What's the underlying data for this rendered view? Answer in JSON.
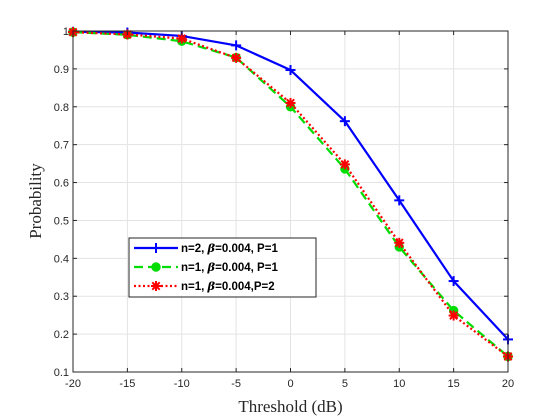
{
  "chart_data": {
    "type": "line",
    "title": "",
    "xlabel": "Threshold (dB)",
    "ylabel": "Probability",
    "x": [
      -20,
      -15,
      -10,
      -5,
      0,
      5,
      10,
      15,
      20
    ],
    "xlim": [
      -20,
      20
    ],
    "ylim": [
      0.1,
      1.0
    ],
    "x_ticks": [
      -20,
      -15,
      -10,
      -5,
      0,
      5,
      10,
      15,
      20
    ],
    "y_ticks": [
      0.1,
      0.2,
      0.3,
      0.4,
      0.5,
      0.6,
      0.7,
      0.8,
      0.9,
      1.0
    ],
    "x_tick_labels": [
      "-20",
      "-15",
      "-10",
      "-5",
      "0",
      "5",
      "10",
      "15",
      "20"
    ],
    "y_tick_labels": [
      "0.1",
      "0.2",
      "0.3",
      "0.4",
      "0.5",
      "0.6",
      "0.7",
      "0.8",
      "0.9",
      "1"
    ],
    "grid": true,
    "legend_position": "lower-left",
    "series": [
      {
        "name": "n=2, β=0.004, P=1",
        "legend_prefix": "n=2, ",
        "legend_symbol": "β",
        "legend_suffix": "=0.004, P=1",
        "values": [
          0.998,
          0.996,
          0.987,
          0.962,
          0.897,
          0.762,
          0.553,
          0.34,
          0.186
        ],
        "color": "#0000ff",
        "line_style": "solid",
        "marker": "plus"
      },
      {
        "name": "n=1, β=0.004, P=1",
        "legend_prefix": "n=1, ",
        "legend_symbol": "β",
        "legend_suffix": "=0.004, P=1",
        "values": [
          0.997,
          0.99,
          0.973,
          0.93,
          0.8,
          0.636,
          0.43,
          0.262,
          0.141
        ],
        "color": "#00dd00",
        "line_style": "dashed",
        "marker": "circle"
      },
      {
        "name": "n=1, β=0.004,P=2",
        "legend_prefix": "n=1, ",
        "legend_symbol": "β",
        "legend_suffix": "=0.004,P=2",
        "values": [
          0.997,
          0.991,
          0.98,
          0.929,
          0.81,
          0.648,
          0.441,
          0.249,
          0.141
        ],
        "color": "#ff0000",
        "line_style": "dotted",
        "marker": "asterisk"
      }
    ]
  }
}
